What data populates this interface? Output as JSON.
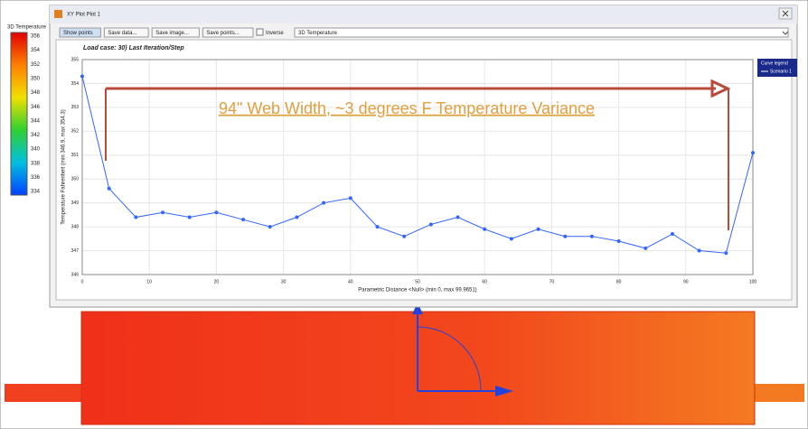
{
  "window": {
    "title": "XY Plot Plot 1"
  },
  "toolbar": {
    "buttons": [
      "Show points",
      "Save data...",
      "Save image...",
      "Save points..."
    ],
    "checkbox": "Inverse",
    "dropdown": "3D Temperature"
  },
  "color_legend": {
    "title": "3D Temperature",
    "labels": [
      "356",
      "354",
      "352",
      "350",
      "348",
      "346",
      "344",
      "342",
      "340",
      "338",
      "336",
      "334"
    ]
  },
  "chart_data": {
    "type": "line",
    "title": "Load case: 30) Last Iteration/Step",
    "x_label": "Parametric Distance <Null> (min 0, max 99.9651)",
    "y_label": "Temperature Fahrenheit (min 346.9, max 354.3)",
    "annotation": "94\" Web Width, ~3 degrees F Temperature Variance",
    "legend_title": "Curve legend",
    "x": [
      0,
      4,
      8,
      12,
      16,
      20,
      24,
      28,
      32,
      36,
      40,
      44,
      48,
      52,
      56,
      60,
      64,
      68,
      72,
      76,
      80,
      84,
      88,
      92,
      96,
      100
    ],
    "series": [
      {
        "name": "Scenario 1",
        "color": "#3366ff",
        "values": [
          354.3,
          349.6,
          348.4,
          348.6,
          348.4,
          348.6,
          348.3,
          348.0,
          348.4,
          349.0,
          349.2,
          348.0,
          347.6,
          348.1,
          348.4,
          347.9,
          347.5,
          347.9,
          347.6,
          347.6,
          347.4,
          347.1,
          347.7,
          347.0,
          346.9,
          351.1
        ]
      }
    ],
    "xlim": [
      0,
      100
    ],
    "xticks": [
      0,
      10,
      20,
      30,
      40,
      50,
      60,
      70,
      80,
      90,
      100
    ],
    "ylim": [
      346,
      355
    ],
    "yticks": [
      346,
      347,
      348,
      349,
      350,
      351,
      352,
      353,
      354,
      355
    ],
    "grid": true
  }
}
